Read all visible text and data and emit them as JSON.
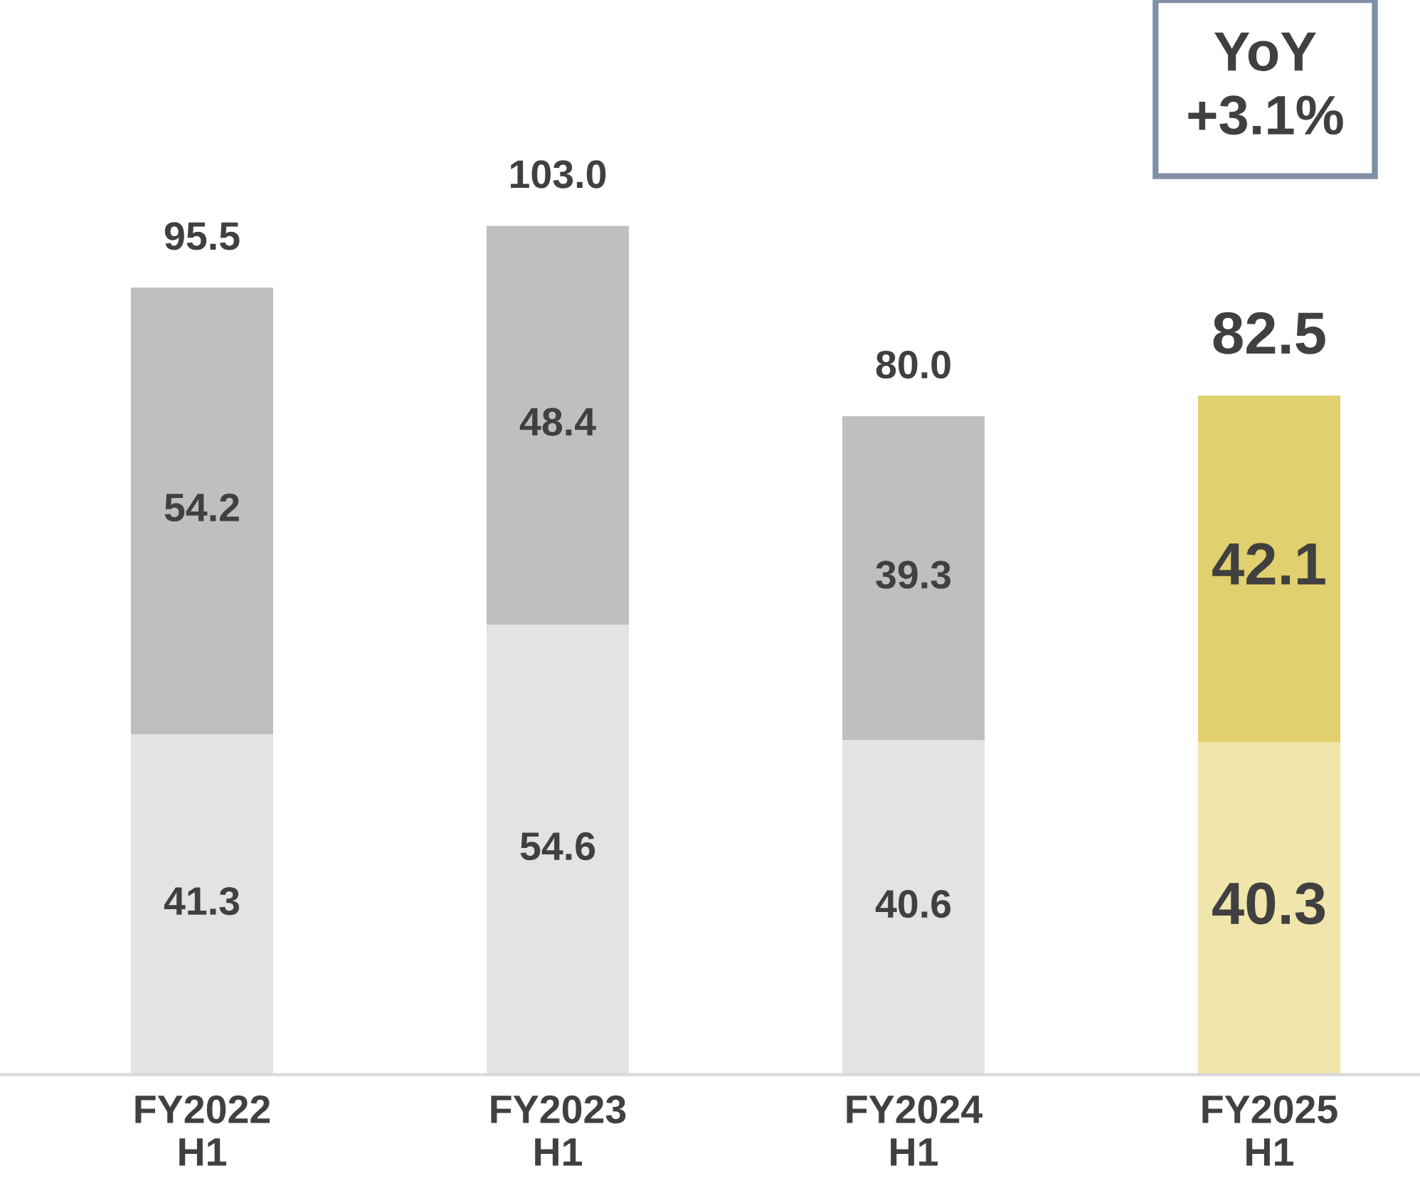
{
  "chart_data": {
    "type": "bar",
    "stacked": true,
    "data_labels": true,
    "categories": [
      "FY2022\nH1",
      "FY2023\nH1",
      "FY2024\nH1",
      "FY2025\nH1"
    ],
    "series": [
      {
        "colors": [
          "#e3e3e3",
          "#e3e3e3",
          "#e3e3e3",
          "#f0e6ac"
        ],
        "values": [
          41.3,
          54.6,
          40.6,
          40.3
        ]
      },
      {
        "colors": [
          "#bfbfbf",
          "#bfbfbf",
          "#bfbfbf",
          "#e0d06e"
        ],
        "values": [
          54.2,
          48.4,
          39.3,
          42.1
        ]
      }
    ],
    "totals": [
      "95.5",
      "103.0",
      "80.0",
      "82.5"
    ],
    "annotations": [
      "YoY\n+3.1%"
    ]
  }
}
